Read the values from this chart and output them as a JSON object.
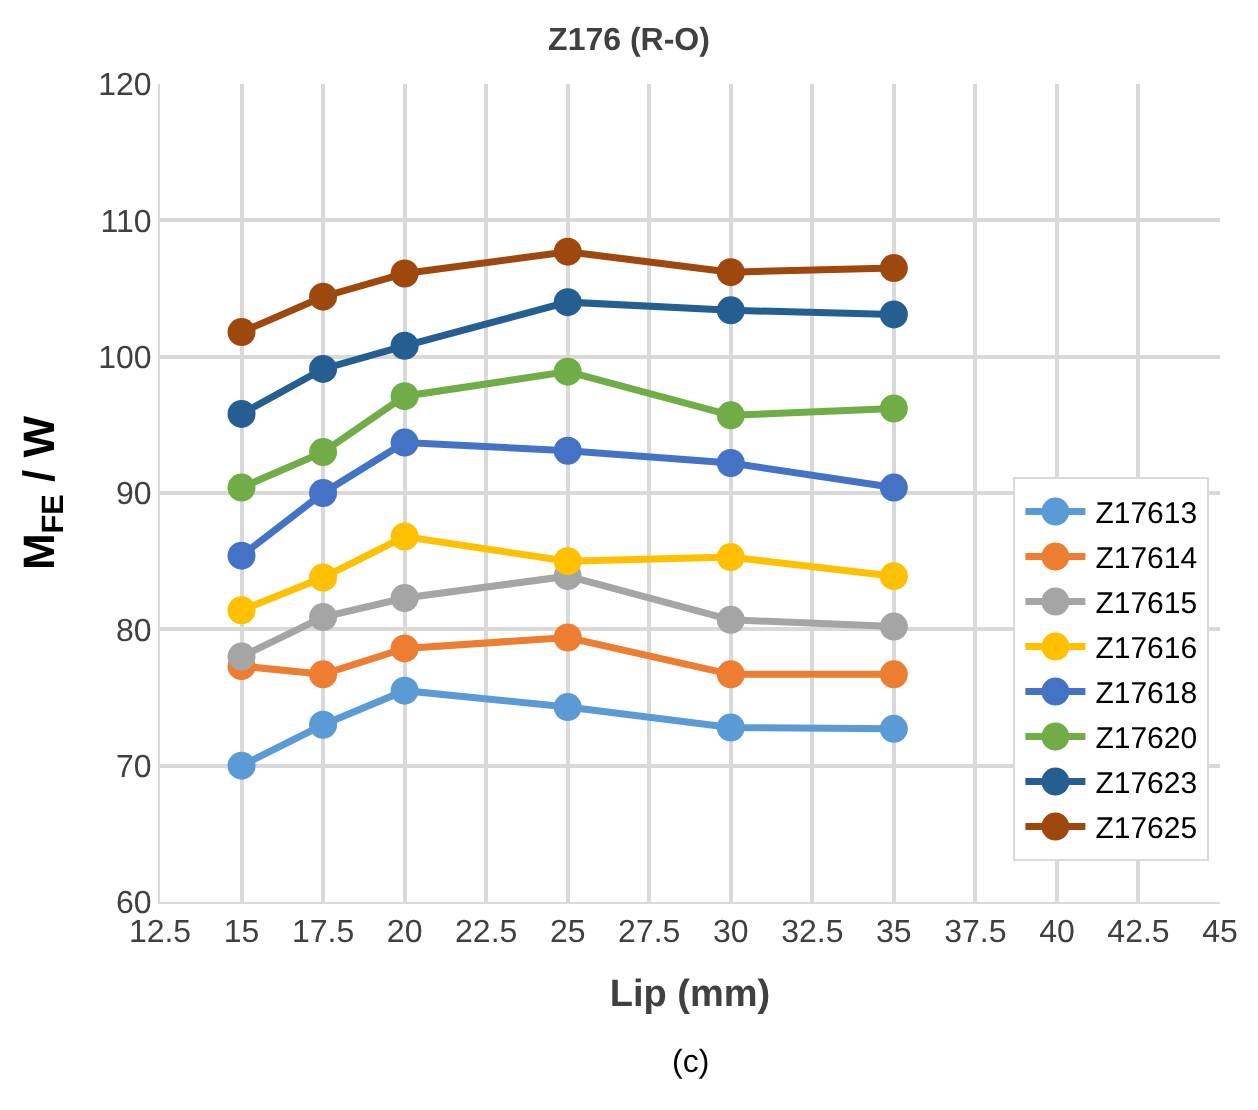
{
  "chart_data": {
    "type": "line",
    "title": "Z176 (R-O)",
    "xlabel": "Lip (mm)",
    "ylabel": "M$_{FE}$ / W",
    "annotations": [
      "(c)"
    ],
    "x": [
      15,
      17.5,
      20,
      25,
      30,
      35
    ],
    "xlim": [
      12.5,
      45
    ],
    "xticks": [
      12.5,
      15,
      17.5,
      20,
      22.5,
      25,
      27.5,
      30,
      32.5,
      35,
      37.5,
      40,
      42.5,
      45
    ],
    "ylim": [
      60,
      120
    ],
    "yticks": [
      60,
      70,
      80,
      90,
      100,
      110,
      120
    ],
    "grid": true,
    "legend": "right",
    "marker": "circle",
    "line_style": "solid",
    "series": [
      {
        "name": "Z17613",
        "color": "#5b9bd5",
        "values": [
          70.0,
          73.0,
          75.5,
          74.3,
          72.8,
          72.7
        ]
      },
      {
        "name": "Z17614",
        "color": "#ed7d31",
        "values": [
          77.3,
          76.7,
          78.6,
          79.4,
          76.7,
          76.7
        ]
      },
      {
        "name": "Z17615",
        "color": "#a5a5a5",
        "values": [
          78.0,
          80.9,
          82.3,
          83.9,
          80.7,
          80.2
        ]
      },
      {
        "name": "Z17616",
        "color": "#ffc000",
        "values": [
          81.4,
          83.8,
          86.8,
          85.0,
          85.3,
          83.9
        ]
      },
      {
        "name": "Z17618",
        "color": "#4472c4",
        "values": [
          85.4,
          90.0,
          93.7,
          93.1,
          92.2,
          90.4
        ]
      },
      {
        "name": "Z17620",
        "color": "#70ad47",
        "values": [
          90.4,
          93.0,
          97.1,
          98.9,
          95.7,
          96.2
        ]
      },
      {
        "name": "Z17623",
        "color": "#255e91",
        "values": [
          95.8,
          99.1,
          100.8,
          104.0,
          103.4,
          103.1
        ]
      },
      {
        "name": "Z17625",
        "color": "#9e480e",
        "values": [
          101.8,
          104.4,
          106.1,
          107.7,
          106.2,
          106.5
        ]
      }
    ]
  }
}
